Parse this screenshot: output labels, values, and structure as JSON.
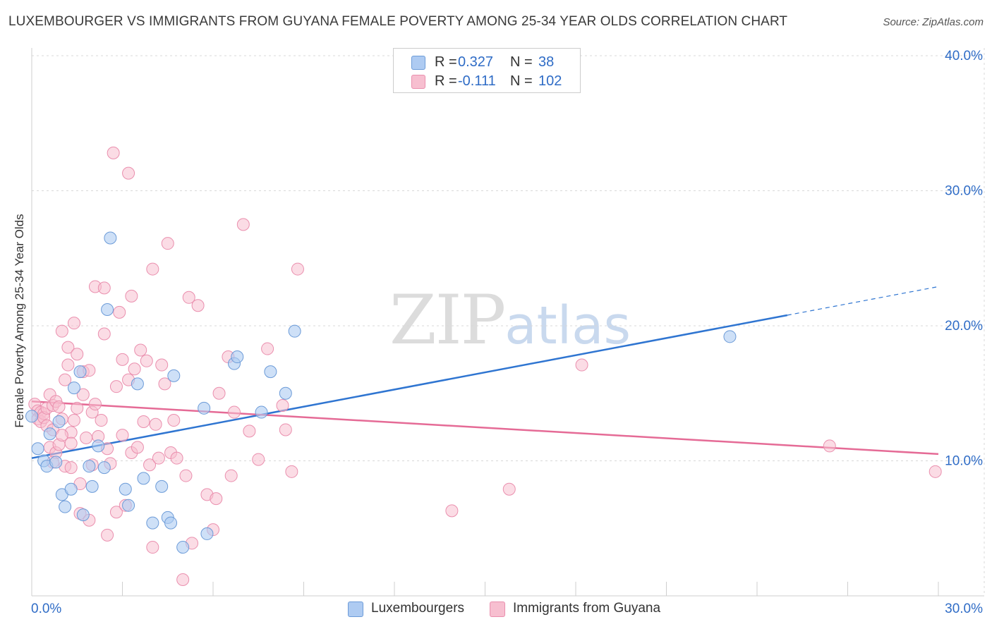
{
  "title": "LUXEMBOURGER VS IMMIGRANTS FROM GUYANA FEMALE POVERTY AMONG 25-34 YEAR OLDS CORRELATION CHART",
  "source": "Source: ZipAtlas.com",
  "watermark": {
    "zip": "ZIP",
    "atlas": "atlas"
  },
  "colors": {
    "blue_fill": "#aecbf2",
    "blue_stroke": "#6c9bd8",
    "blue_line": "#2f75d1",
    "pink_fill": "#f7bfd0",
    "pink_stroke": "#ea8fae",
    "pink_line": "#e56b96",
    "value_text": "#2f6cc6"
  },
  "legend": {
    "rows": [
      {
        "r_label": "R =",
        "r_value": "0.327",
        "n_label": "N =",
        "n_value": "38"
      },
      {
        "r_label": "R =",
        "r_value": "-0.111",
        "n_label": "N =",
        "n_value": "102"
      }
    ]
  },
  "bottom_legend": [
    "Luxembourgers",
    "Immigrants from Guyana"
  ],
  "chart_data": {
    "type": "scatter",
    "title": "LUXEMBOURGER VS IMMIGRANTS FROM GUYANA FEMALE POVERTY AMONG 25-34 YEAR OLDS CORRELATION CHART",
    "xlabel": "",
    "ylabel": "Female Poverty Among 25-34 Year Olds",
    "xlim": [
      0,
      30
    ],
    "ylim": [
      0,
      40
    ],
    "x_tick_labels": [
      "0.0%",
      "30.0%"
    ],
    "y_tick_labels": [
      "10.0%",
      "20.0%",
      "30.0%",
      "40.0%"
    ],
    "y_ticks": [
      10,
      20,
      30,
      40
    ],
    "grid": true,
    "series": [
      {
        "name": "Luxembourgers",
        "r": 0.327,
        "n": 38,
        "trend": {
          "x0": 0,
          "y0": 10.2,
          "x1": 30,
          "y1": 22.9,
          "solid_until_x": 25.0
        },
        "points": [
          [
            0.0,
            13.3
          ],
          [
            0.2,
            10.9
          ],
          [
            0.4,
            10.0
          ],
          [
            0.5,
            9.6
          ],
          [
            0.6,
            12.0
          ],
          [
            0.8,
            9.9
          ],
          [
            0.9,
            12.9
          ],
          [
            1.0,
            7.5
          ],
          [
            1.1,
            6.6
          ],
          [
            1.3,
            7.9
          ],
          [
            1.4,
            15.4
          ],
          [
            1.6,
            16.6
          ],
          [
            1.7,
            6.0
          ],
          [
            1.9,
            9.6
          ],
          [
            2.0,
            8.1
          ],
          [
            2.2,
            11.1
          ],
          [
            2.4,
            9.5
          ],
          [
            2.5,
            21.2
          ],
          [
            2.6,
            26.5
          ],
          [
            3.1,
            7.9
          ],
          [
            3.2,
            6.7
          ],
          [
            3.5,
            15.7
          ],
          [
            3.7,
            8.7
          ],
          [
            4.0,
            5.4
          ],
          [
            4.3,
            8.1
          ],
          [
            4.5,
            5.8
          ],
          [
            4.6,
            5.4
          ],
          [
            4.7,
            16.3
          ],
          [
            5.0,
            3.6
          ],
          [
            5.7,
            13.9
          ],
          [
            5.8,
            4.6
          ],
          [
            6.7,
            17.2
          ],
          [
            6.8,
            17.7
          ],
          [
            7.6,
            13.6
          ],
          [
            7.9,
            16.6
          ],
          [
            8.4,
            15.0
          ],
          [
            8.7,
            19.6
          ],
          [
            23.1,
            19.2
          ]
        ]
      },
      {
        "name": "Immigrants from Guyana",
        "r": -0.111,
        "n": 102,
        "trend": {
          "x0": 0,
          "y0": 14.4,
          "x1": 30,
          "y1": 10.5
        },
        "points": [
          [
            0.1,
            14.2
          ],
          [
            0.2,
            13.7
          ],
          [
            0.2,
            13.1
          ],
          [
            0.3,
            13.6
          ],
          [
            0.3,
            12.9
          ],
          [
            0.4,
            13.5
          ],
          [
            0.4,
            13.2
          ],
          [
            0.5,
            13.9
          ],
          [
            0.5,
            12.6
          ],
          [
            0.6,
            14.9
          ],
          [
            0.6,
            11.0
          ],
          [
            0.7,
            14.1
          ],
          [
            0.7,
            12.3
          ],
          [
            0.8,
            14.4
          ],
          [
            0.8,
            10.6
          ],
          [
            0.9,
            14.0
          ],
          [
            0.9,
            11.2
          ],
          [
            1.0,
            19.6
          ],
          [
            1.0,
            13.1
          ],
          [
            1.1,
            16.0
          ],
          [
            1.1,
            9.6
          ],
          [
            1.2,
            18.4
          ],
          [
            1.2,
            17.1
          ],
          [
            1.3,
            12.1
          ],
          [
            1.3,
            9.5
          ],
          [
            1.4,
            20.2
          ],
          [
            1.4,
            13.0
          ],
          [
            1.5,
            17.9
          ],
          [
            1.5,
            13.9
          ],
          [
            1.6,
            8.3
          ],
          [
            1.6,
            6.1
          ],
          [
            1.7,
            16.6
          ],
          [
            1.7,
            14.9
          ],
          [
            1.8,
            11.7
          ],
          [
            1.9,
            16.7
          ],
          [
            1.9,
            5.6
          ],
          [
            2.0,
            13.6
          ],
          [
            2.0,
            9.7
          ],
          [
            2.1,
            14.2
          ],
          [
            2.1,
            22.9
          ],
          [
            2.2,
            11.8
          ],
          [
            2.3,
            13.0
          ],
          [
            2.4,
            22.8
          ],
          [
            2.4,
            19.4
          ],
          [
            2.5,
            10.9
          ],
          [
            2.5,
            4.5
          ],
          [
            2.6,
            9.8
          ],
          [
            2.7,
            32.8
          ],
          [
            2.8,
            6.2
          ],
          [
            2.9,
            21.0
          ],
          [
            3.0,
            17.5
          ],
          [
            3.1,
            6.7
          ],
          [
            3.2,
            31.3
          ],
          [
            3.2,
            16.0
          ],
          [
            3.3,
            22.2
          ],
          [
            3.3,
            10.6
          ],
          [
            3.4,
            16.8
          ],
          [
            3.5,
            11.0
          ],
          [
            3.6,
            18.2
          ],
          [
            3.7,
            12.9
          ],
          [
            3.8,
            17.4
          ],
          [
            3.9,
            9.7
          ],
          [
            4.0,
            24.2
          ],
          [
            4.0,
            3.6
          ],
          [
            4.1,
            12.7
          ],
          [
            4.2,
            10.2
          ],
          [
            4.3,
            17.1
          ],
          [
            4.4,
            15.7
          ],
          [
            4.5,
            26.1
          ],
          [
            4.6,
            10.6
          ],
          [
            4.7,
            13.0
          ],
          [
            4.8,
            10.2
          ],
          [
            5.0,
            1.2
          ],
          [
            5.1,
            8.9
          ],
          [
            5.2,
            22.1
          ],
          [
            5.3,
            3.9
          ],
          [
            5.5,
            21.5
          ],
          [
            5.8,
            7.5
          ],
          [
            6.0,
            4.9
          ],
          [
            6.1,
            7.2
          ],
          [
            6.2,
            15.0
          ],
          [
            6.5,
            17.7
          ],
          [
            6.6,
            8.9
          ],
          [
            7.0,
            27.5
          ],
          [
            7.2,
            12.2
          ],
          [
            7.5,
            10.1
          ],
          [
            7.8,
            18.3
          ],
          [
            8.3,
            14.1
          ],
          [
            8.4,
            12.3
          ],
          [
            8.6,
            9.2
          ],
          [
            8.8,
            24.2
          ],
          [
            13.9,
            6.3
          ],
          [
            15.8,
            7.9
          ],
          [
            18.2,
            17.1
          ],
          [
            26.4,
            11.1
          ],
          [
            29.9,
            9.2
          ],
          [
            1.3,
            11.3
          ],
          [
            0.7,
            9.9
          ],
          [
            2.8,
            15.5
          ],
          [
            3.0,
            11.9
          ],
          [
            6.7,
            13.6
          ],
          [
            1.0,
            11.9
          ]
        ]
      }
    ]
  }
}
